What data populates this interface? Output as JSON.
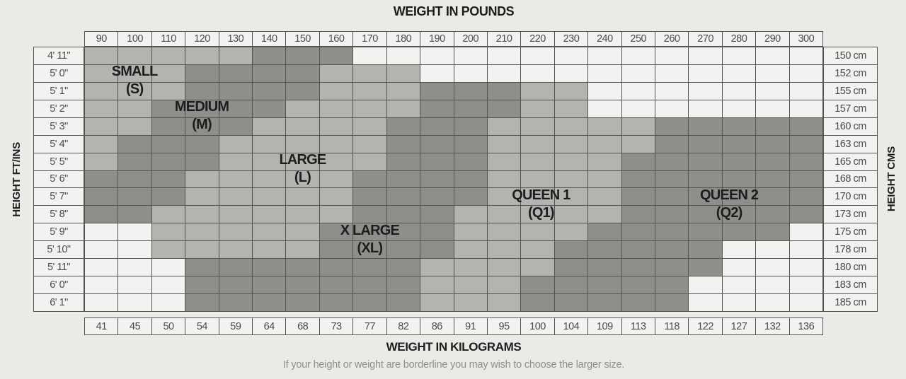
{
  "page": {
    "top_axis_title": "WEIGHT IN POUNDS",
    "bottom_axis_title": "WEIGHT IN KILOGRAMS",
    "left_axis_title": "HEIGHT FT/INS",
    "right_axis_title": "HEIGHT CMS",
    "footnote": "If your height or weight are borderline you may wish to choose the larger size."
  },
  "chart_data": {
    "type": "heatmap",
    "title": "WEIGHT IN POUNDS",
    "xlabel_top": "WEIGHT IN POUNDS",
    "xlabel_bottom": "WEIGHT IN KILOGRAMS",
    "ylabel_left": "HEIGHT FT/INS",
    "ylabel_right": "HEIGHT CMS",
    "pounds": [
      "90",
      "100",
      "110",
      "120",
      "130",
      "140",
      "150",
      "160",
      "170",
      "180",
      "190",
      "200",
      "210",
      "220",
      "230",
      "240",
      "250",
      "260",
      "270",
      "280",
      "290",
      "300"
    ],
    "kilograms": [
      "41",
      "45",
      "50",
      "54",
      "59",
      "64",
      "68",
      "73",
      "77",
      "82",
      "86",
      "91",
      "95",
      "100",
      "104",
      "109",
      "113",
      "118",
      "122",
      "127",
      "132",
      "136"
    ],
    "heights_ft_in": [
      "4' 11\"",
      "5' 0\"",
      "5' 1\"",
      "5' 2\"",
      "5' 3\"",
      "5' 4\"",
      "5' 5\"",
      "5' 6\"",
      "5' 7\"",
      "5' 8\"",
      "5' 9\"",
      "5' 10\"",
      "5' 11\"",
      "6' 0\"",
      "6' 1\""
    ],
    "heights_cm": [
      "150 cm",
      "152 cm",
      "155 cm",
      "157 cm",
      "160 cm",
      "163 cm",
      "165 cm",
      "168 cm",
      "170 cm",
      "173 cm",
      "175 cm",
      "178 cm",
      "180 cm",
      "183 cm",
      "185 cm"
    ],
    "cell_legend": {
      "W": "blank / no size",
      "L": "light-gray size zone",
      "D": "dark-gray size zone"
    },
    "rows": [
      "LLLLLDDDWWWWWWWWWWWWWW",
      "LLLDDDDLLLWWWWWWWWWWWW",
      "LLLDDDDLLLDDDLLWWWWWWW",
      "LLDDDDLLLLDDDLLWWWWWWW",
      "LLDDDLLLLDDDLLLLLDDDDD",
      "LDDDLLLLLDDDLLLLLDDDDD",
      "LDDDLLLLLDDDLLLLDDDDDD",
      "DDDLLLLLDDDDLLLLDDDDDD",
      "DDDLLLLLDDDDLLLLDDDDDD",
      "DDLLLLLLDDDLLLLLDDDDDD",
      "WWLLLLLDDDDLLLLDDDDDDW",
      "WWLLLLLDDDDLLLDDDDDWWW",
      "WWWDDDDDDDLLLLDDDDDWWW",
      "WWWDDDDDDDLLLDDDDDWWWW",
      "WWWDDDDDDDLLLDDDDDWWWW"
    ],
    "sizes": [
      {
        "label": "SMALL",
        "abbr": "(S)",
        "col_center": 1.0,
        "row": 1
      },
      {
        "label": "MEDIUM",
        "abbr": "(M)",
        "col_center": 3.0,
        "row": 3
      },
      {
        "label": "LARGE",
        "abbr": "(L)",
        "col_center": 6.0,
        "row": 6
      },
      {
        "label": "QUEEN 1",
        "abbr": "(Q1)",
        "col_center": 13.1,
        "row": 8
      },
      {
        "label": "QUEEN 2",
        "abbr": "(Q2)",
        "col_center": 18.7,
        "row": 8
      },
      {
        "label": "X LARGE",
        "abbr": "(XL)",
        "col_center": 8.0,
        "row": 10
      }
    ],
    "colors": {
      "background": "#ebeae7",
      "cell_blank": "#f3f2f0",
      "cell_light": "#b5b3b0",
      "cell_dark": "#908e8b",
      "gridline": "#55534f",
      "number_text": "#4b4b4d",
      "label_text": "#1d1d1b",
      "footnote_text": "#8f8d8b"
    }
  }
}
